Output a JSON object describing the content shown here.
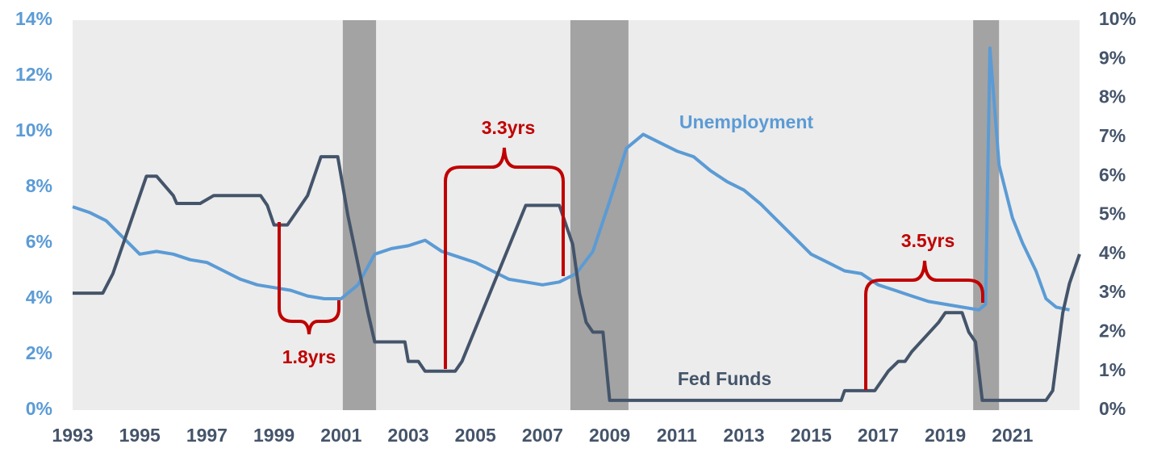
{
  "chart_data": {
    "type": "line",
    "xlim": [
      1993,
      2023
    ],
    "xticks": [
      1993,
      1995,
      1997,
      1999,
      2001,
      2003,
      2005,
      2007,
      2009,
      2011,
      2013,
      2015,
      2017,
      2019,
      2021
    ],
    "ylim": [
      0,
      14
    ],
    "yticks": [
      {
        "value": 0,
        "label": "0%"
      },
      {
        "value": 2,
        "label": "2%"
      },
      {
        "value": 4,
        "label": "4%"
      },
      {
        "value": 6,
        "label": "6%"
      },
      {
        "value": 8,
        "label": "8%"
      },
      {
        "value": 10,
        "label": "10%"
      },
      {
        "value": 12,
        "label": "12%"
      },
      {
        "value": 14,
        "label": "14%"
      }
    ],
    "y2lim": [
      0,
      10
    ],
    "y2ticks": [
      {
        "value": 0,
        "label": "0%"
      },
      {
        "value": 1,
        "label": "1%"
      },
      {
        "value": 2,
        "label": "2%"
      },
      {
        "value": 3,
        "label": "3%"
      },
      {
        "value": 4,
        "label": "4%"
      },
      {
        "value": 5,
        "label": "5%"
      },
      {
        "value": 6,
        "label": "6%"
      },
      {
        "value": 7,
        "label": "7%"
      },
      {
        "value": 8,
        "label": "8%"
      },
      {
        "value": 9,
        "label": "9%"
      },
      {
        "value": 10,
        "label": "10%"
      }
    ],
    "shading": [
      [
        2001.05,
        2002.04
      ],
      [
        2007.83,
        2009.56
      ],
      [
        2019.83,
        2020.6
      ]
    ],
    "shading_color": "#a3a3a3",
    "background": "#ececec",
    "series": [
      {
        "name": "Unemployment",
        "color": "#5b9bd5",
        "axis": "y",
        "x": [
          1993.0,
          1993.5,
          1994.0,
          1994.5,
          1995.0,
          1995.5,
          1996.0,
          1996.5,
          1997.0,
          1997.5,
          1998.0,
          1998.5,
          1999.0,
          1999.5,
          2000.0,
          2000.5,
          2001.0,
          2001.5,
          2002.0,
          2002.5,
          2003.0,
          2003.5,
          2004.0,
          2004.5,
          2005.0,
          2005.5,
          2006.0,
          2006.5,
          2007.0,
          2007.5,
          2008.0,
          2008.5,
          2009.0,
          2009.5,
          2010.0,
          2010.5,
          2011.0,
          2011.5,
          2012.0,
          2012.5,
          2013.0,
          2013.5,
          2014.0,
          2014.5,
          2015.0,
          2015.5,
          2016.0,
          2016.5,
          2017.0,
          2017.5,
          2018.0,
          2018.5,
          2019.0,
          2019.5,
          2020.0,
          2020.2,
          2020.33,
          2020.6,
          2021.0,
          2021.3,
          2021.7,
          2022.0,
          2022.3,
          2022.7
        ],
        "values": [
          7.3,
          7.1,
          6.8,
          6.2,
          5.6,
          5.7,
          5.6,
          5.4,
          5.3,
          5.0,
          4.7,
          4.5,
          4.4,
          4.3,
          4.1,
          4.0,
          4.0,
          4.5,
          5.6,
          5.8,
          5.9,
          6.1,
          5.7,
          5.5,
          5.3,
          5.0,
          4.7,
          4.6,
          4.5,
          4.6,
          4.9,
          5.7,
          7.5,
          9.4,
          9.9,
          9.6,
          9.3,
          9.1,
          8.6,
          8.2,
          7.9,
          7.4,
          6.8,
          6.2,
          5.6,
          5.3,
          5.0,
          4.9,
          4.5,
          4.3,
          4.1,
          3.9,
          3.8,
          3.7,
          3.6,
          3.8,
          13.0,
          8.8,
          6.9,
          6.0,
          5.0,
          4.0,
          3.7,
          3.6
        ]
      },
      {
        "name": "Fed Funds",
        "color": "#44546a",
        "axis": "y2",
        "x": [
          1993.0,
          1993.9,
          1994.2,
          1994.6,
          1995.0,
          1995.2,
          1995.5,
          1996.0,
          1996.1,
          1996.8,
          1997.2,
          1998.6,
          1998.8,
          1999.0,
          1999.4,
          1999.6,
          2000.0,
          2000.4,
          2000.9,
          2001.2,
          2001.5,
          2001.8,
          2002.0,
          2002.9,
          2003.0,
          2003.3,
          2003.5,
          2004.4,
          2004.6,
          2006.5,
          2007.5,
          2007.9,
          2008.1,
          2008.3,
          2008.5,
          2008.8,
          2009.0,
          2015.9,
          2016.0,
          2016.9,
          2017.3,
          2017.6,
          2017.8,
          2018.0,
          2018.8,
          2019.0,
          2019.5,
          2019.7,
          2019.9,
          2020.1,
          2022.0,
          2022.2,
          2022.5,
          2022.7,
          2023.0
        ],
        "values": [
          3.0,
          3.0,
          3.5,
          4.5,
          5.5,
          6.0,
          6.0,
          5.5,
          5.3,
          5.3,
          5.5,
          5.5,
          5.25,
          4.75,
          4.75,
          5.0,
          5.5,
          6.5,
          6.5,
          5.0,
          3.75,
          2.5,
          1.75,
          1.75,
          1.25,
          1.25,
          1.0,
          1.0,
          1.25,
          5.25,
          5.25,
          4.25,
          3.0,
          2.25,
          2.0,
          2.0,
          0.25,
          0.25,
          0.5,
          0.5,
          1.0,
          1.25,
          1.25,
          1.5,
          2.25,
          2.5,
          2.5,
          2.0,
          1.75,
          0.25,
          0.25,
          0.5,
          2.5,
          3.25,
          4.0
        ]
      }
    ],
    "annotations": [
      "1.8yrs",
      "3.3yrs",
      "3.5yrs"
    ]
  }
}
